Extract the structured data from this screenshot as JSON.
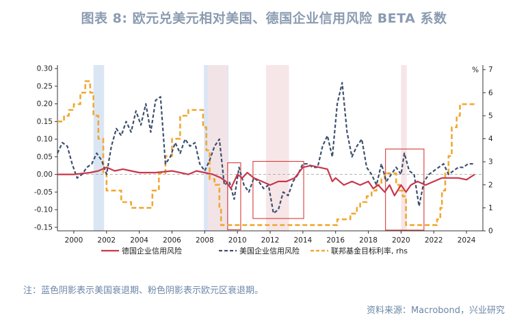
{
  "title": "图表 8:  欧元兑美元相对美国、德国企业信用风险 BETA 系数",
  "note": "注：蓝色阴影表示美国衰退期、粉色阴影表示欧元区衰退期。",
  "source": "资料来源：Macrobond，兴业研究",
  "colors": {
    "germany": "#c8364a",
    "us": "#3c4f6e",
    "fed": "#f0a830",
    "us_recession": "#dbe6f4",
    "ez_recession": "#f6e2e4",
    "box": "#d83a3a"
  },
  "chart_data": {
    "type": "line",
    "xlabel": "",
    "ylabel": "",
    "xlim": [
      1999.0,
      2025.0
    ],
    "ylim": [
      -0.16,
      0.31
    ],
    "y2lim": [
      0,
      7.2
    ],
    "y2unit": "%",
    "xticks": [
      "2000",
      "2002",
      "2004",
      "2006",
      "2008",
      "2010",
      "2012",
      "2014",
      "2016",
      "2018",
      "2020",
      "2022",
      "2024"
    ],
    "yticks": [
      "0.30",
      "0.25",
      "0.20",
      "0.15",
      "0.10",
      "0.05",
      "0.00",
      "-0.05",
      "-0.10",
      "-0.15"
    ],
    "y2ticks": [
      "7",
      "6",
      "5",
      "4",
      "3",
      "2",
      "1",
      "0"
    ],
    "legend_position": "bottom",
    "us_recessions": [
      [
        2001.2,
        2001.85
      ],
      [
        2007.95,
        2009.45
      ]
    ],
    "ez_recessions": [
      [
        2008.2,
        2009.4
      ],
      [
        2011.75,
        2013.15
      ],
      [
        2020.0,
        2020.35
      ]
    ],
    "highlight_boxes": [
      [
        2009.4,
        2010.2,
        -0.157,
        0.033
      ],
      [
        2010.95,
        2014.05,
        -0.125,
        0.037
      ],
      [
        2019.05,
        2021.4,
        -0.158,
        0.072
      ]
    ],
    "series": [
      {
        "name": "德国企业信用风险",
        "axis": "left",
        "style": "solid",
        "x": [
          1999.0,
          2000.0,
          2001.0,
          2001.5,
          2002.0,
          2002.5,
          2003.0,
          2003.5,
          2004.0,
          2005.0,
          2006.0,
          2007.0,
          2007.5,
          2008.0,
          2008.5,
          2009.0,
          2009.3,
          2009.6,
          2010.0,
          2010.3,
          2010.6,
          2011.0,
          2011.5,
          2012.0,
          2012.5,
          2013.0,
          2013.5,
          2014.0,
          2014.5,
          2015.0,
          2015.5,
          2015.8,
          2016.0,
          2016.5,
          2017.0,
          2017.5,
          2018.0,
          2018.3,
          2018.6,
          2019.0,
          2019.3,
          2019.6,
          2020.0,
          2020.3,
          2020.6,
          2021.0,
          2021.5,
          2022.0,
          2022.5,
          2023.0,
          2023.5,
          2024.0,
          2024.5
        ],
        "y": [
          0.0,
          0.0,
          0.005,
          0.01,
          0.02,
          0.01,
          0.015,
          0.01,
          0.005,
          0.005,
          0.01,
          0.0,
          0.01,
          0.005,
          0.0,
          -0.01,
          -0.02,
          -0.04,
          0.0,
          -0.01,
          0.005,
          -0.01,
          -0.02,
          -0.03,
          -0.02,
          -0.02,
          -0.01,
          0.02,
          0.025,
          0.02,
          0.015,
          -0.02,
          -0.01,
          -0.03,
          -0.02,
          -0.03,
          -0.02,
          -0.04,
          -0.03,
          -0.05,
          -0.03,
          -0.06,
          -0.03,
          -0.05,
          -0.03,
          -0.02,
          -0.03,
          -0.02,
          -0.01,
          -0.01,
          -0.01,
          -0.015,
          0.0
        ]
      },
      {
        "name": "美国企业信用风险",
        "axis": "left",
        "style": "dashed",
        "x": [
          1999.0,
          1999.3,
          1999.6,
          1999.9,
          2000.2,
          2000.5,
          2000.8,
          2001.1,
          2001.4,
          2001.7,
          2002.0,
          2002.3,
          2002.6,
          2002.9,
          2003.2,
          2003.5,
          2003.8,
          2004.1,
          2004.4,
          2004.7,
          2005.0,
          2005.3,
          2005.6,
          2005.9,
          2006.2,
          2006.5,
          2006.8,
          2007.1,
          2007.4,
          2007.7,
          2008.0,
          2008.3,
          2008.6,
          2008.9,
          2009.2,
          2009.5,
          2009.8,
          2010.1,
          2010.4,
          2010.7,
          2011.0,
          2011.3,
          2011.6,
          2011.9,
          2012.2,
          2012.5,
          2012.8,
          2013.1,
          2013.4,
          2013.7,
          2014.0,
          2014.3,
          2014.6,
          2014.9,
          2015.2,
          2015.5,
          2015.8,
          2016.1,
          2016.4,
          2016.7,
          2017.0,
          2017.3,
          2017.6,
          2017.9,
          2018.2,
          2018.5,
          2018.8,
          2019.1,
          2019.4,
          2019.7,
          2020.0,
          2020.2,
          2020.5,
          2020.8,
          2021.1,
          2021.4,
          2021.7,
          2022.0,
          2022.3,
          2022.6,
          2022.9,
          2023.2,
          2023.5,
          2023.8,
          2024.1,
          2024.5
        ],
        "y": [
          0.06,
          0.09,
          0.08,
          0.03,
          -0.01,
          0.0,
          0.02,
          0.03,
          0.06,
          0.04,
          0.0,
          0.08,
          0.13,
          0.11,
          0.15,
          0.12,
          0.18,
          0.14,
          0.2,
          0.12,
          0.21,
          0.22,
          0.03,
          0.05,
          0.09,
          0.06,
          0.1,
          0.08,
          0.09,
          0.03,
          0.01,
          0.04,
          0.08,
          0.1,
          -0.03,
          -0.02,
          -0.07,
          0.02,
          -0.03,
          -0.05,
          -0.01,
          -0.02,
          -0.04,
          -0.03,
          -0.11,
          -0.1,
          -0.05,
          -0.06,
          -0.02,
          0.0,
          0.03,
          0.03,
          0.02,
          0.02,
          0.08,
          0.11,
          0.05,
          0.2,
          0.26,
          0.12,
          0.05,
          0.08,
          0.1,
          0.02,
          0.0,
          -0.03,
          0.03,
          -0.02,
          0.0,
          0.02,
          0.0,
          0.06,
          0.01,
          0.0,
          -0.09,
          -0.02,
          0.0,
          0.01,
          0.02,
          0.03,
          0.0,
          0.01,
          0.02,
          0.02,
          0.03,
          0.03
        ]
      },
      {
        "name": "联邦基金目标利率, rhs",
        "axis": "right",
        "style": "dashed",
        "x": [
          1999.0,
          1999.4,
          1999.7,
          2000.0,
          2000.4,
          2000.7,
          2001.0,
          2001.2,
          2001.5,
          2001.8,
          2002.0,
          2002.5,
          2002.9,
          2003.5,
          2004.4,
          2004.8,
          2005.2,
          2005.6,
          2006.0,
          2006.5,
          2007.0,
          2007.6,
          2007.9,
          2008.1,
          2008.3,
          2008.6,
          2008.9,
          2009.0,
          2010.0,
          2012.0,
          2014.0,
          2015.9,
          2016.1,
          2016.9,
          2017.3,
          2017.5,
          2017.9,
          2018.2,
          2018.5,
          2018.8,
          2019.0,
          2019.5,
          2019.7,
          2019.9,
          2020.1,
          2020.3,
          2021.0,
          2022.0,
          2022.2,
          2022.4,
          2022.5,
          2022.7,
          2022.9,
          2023.1,
          2023.4,
          2023.6,
          2024.0,
          2024.6
        ],
        "y": [
          4.75,
          5.0,
          5.25,
          5.5,
          6.0,
          6.5,
          6.0,
          5.0,
          4.0,
          2.5,
          1.75,
          1.75,
          1.25,
          1.0,
          1.0,
          1.75,
          2.5,
          3.25,
          4.0,
          5.0,
          5.25,
          5.25,
          4.5,
          3.5,
          2.25,
          2.0,
          1.0,
          0.25,
          0.25,
          0.25,
          0.25,
          0.25,
          0.5,
          0.75,
          1.0,
          1.25,
          1.5,
          1.75,
          2.0,
          2.25,
          2.5,
          2.5,
          2.0,
          1.75,
          1.5,
          0.25,
          0.25,
          0.25,
          0.5,
          1.0,
          1.75,
          2.5,
          3.25,
          4.5,
          5.0,
          5.5,
          5.5,
          5.5
        ]
      }
    ]
  }
}
